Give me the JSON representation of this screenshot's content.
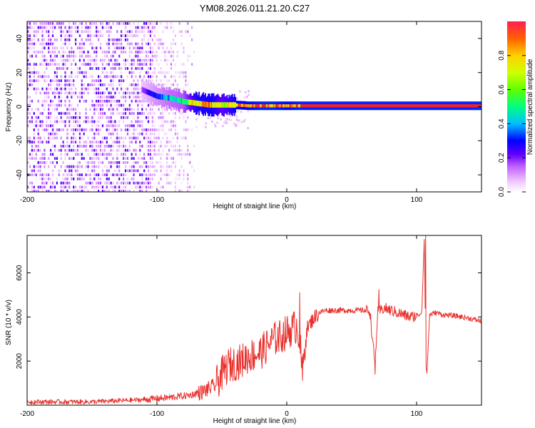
{
  "title": "YM08.2026.011.21.20.C27",
  "colors": {
    "snr_line": "#e8302c",
    "frame": "#000000",
    "spectro_band": "#ff1e1e",
    "colormap": [
      "#ffffff",
      "#f0c8ff",
      "#a000ff",
      "#4000ff",
      "#0000ff",
      "#00c0ff",
      "#00ff60",
      "#a0ff00",
      "#ffff00",
      "#ff8000",
      "#ff1e1e"
    ]
  },
  "chart_data": [
    {
      "type": "heatmap",
      "title": "YM08.2026.011.21.20.C27",
      "xlabel": "Height of straight line (km)",
      "ylabel": "Frequency (Hz)",
      "xlim": [
        -200,
        150
      ],
      "ylim": [
        -50,
        50
      ],
      "xticks": [
        "-200",
        "-100",
        "0",
        "100"
      ],
      "yticks": [
        "-40",
        "-20",
        "0",
        "20",
        "40"
      ],
      "xtick_values": [
        -200,
        -100,
        0,
        100
      ],
      "ytick_values": [
        -40,
        -20,
        0,
        20,
        40
      ],
      "colorbar": {
        "label": "Normalized spectral amplitude",
        "range": [
          0,
          1
        ],
        "ticks": [
          "0.0",
          "0.2",
          "0.4",
          "0.6",
          "0.8"
        ],
        "tick_values": [
          0.0,
          0.2,
          0.4,
          0.6,
          0.8
        ]
      },
      "noise_region": {
        "x_range": [
          -200,
          -72
        ],
        "freq_range": [
          -50,
          50
        ],
        "amplitude_range": [
          0.05,
          0.25
        ]
      },
      "signal_trace": {
        "x": [
          -112,
          -100,
          -90,
          -80,
          -70,
          -60,
          -50,
          -40,
          -30,
          -20,
          -10,
          0,
          10,
          50,
          80,
          90,
          103,
          150
        ],
        "freq": [
          10,
          6,
          5,
          3,
          2,
          1,
          1,
          1,
          0.5,
          0.5,
          0.5,
          0.5,
          0.5,
          0.5,
          0.5,
          0.5,
          0.5,
          0.5
        ],
        "amplitude": [
          0.2,
          0.35,
          0.45,
          0.5,
          0.85,
          0.9,
          0.7,
          0.9,
          0.95,
          1.0,
          1.0,
          0.95,
          1.0,
          1.0,
          1.0,
          1.0,
          1.0,
          1.0
        ]
      }
    },
    {
      "type": "line",
      "xlabel": "Height of straight line (km)",
      "ylabel": "SNR (10 * v/v)",
      "xlim": [
        -200,
        150
      ],
      "ylim": [
        0,
        7700
      ],
      "xticks": [
        "-200",
        "-100",
        "0",
        "100"
      ],
      "yticks": [
        "2000",
        "4000",
        "6000"
      ],
      "xtick_values": [
        -200,
        -100,
        0,
        100
      ],
      "ytick_values": [
        2000,
        4000,
        6000
      ],
      "series": [
        {
          "name": "SNR",
          "x": [
            -200,
            -150,
            -110,
            -90,
            -75,
            -65,
            -55,
            -50,
            -45,
            -40,
            -35,
            -30,
            -25,
            -20,
            -15,
            -10,
            -5,
            0,
            5,
            8,
            10,
            12,
            15,
            20,
            25,
            30,
            40,
            50,
            60,
            64,
            66,
            68,
            70,
            75,
            80,
            85,
            90,
            95,
            100,
            104,
            106,
            107,
            108,
            110,
            115,
            120,
            130,
            140,
            150
          ],
          "y": [
            150,
            150,
            250,
            350,
            450,
            600,
            900,
            1400,
            1800,
            1900,
            2000,
            2200,
            2300,
            2400,
            2700,
            3000,
            3100,
            3300,
            3500,
            3600,
            3000,
            1300,
            3400,
            3900,
            4200,
            4300,
            4300,
            4300,
            4300,
            4300,
            3000,
            1800,
            4200,
            4400,
            4300,
            4200,
            4100,
            4000,
            4050,
            4200,
            7700,
            2000,
            1400,
            4100,
            4200,
            4100,
            4050,
            3950,
            3800
          ],
          "spikes": [
            {
              "x": 10,
              "y": 5100
            },
            {
              "x": 68,
              "y": 1400
            },
            {
              "x": 71,
              "y": 5250
            },
            {
              "x": 107,
              "y": 7700
            },
            {
              "x": 108,
              "y": 1450
            }
          ]
        }
      ]
    }
  ]
}
